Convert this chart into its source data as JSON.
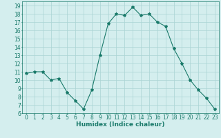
{
  "x": [
    0,
    1,
    2,
    3,
    4,
    5,
    6,
    7,
    8,
    9,
    10,
    11,
    12,
    13,
    14,
    15,
    16,
    17,
    18,
    19,
    20,
    21,
    22,
    23
  ],
  "y": [
    10.8,
    11.0,
    11.0,
    10.0,
    10.2,
    8.5,
    7.5,
    6.5,
    8.8,
    13.0,
    16.8,
    18.0,
    17.8,
    18.8,
    17.8,
    18.0,
    17.0,
    16.5,
    13.8,
    12.0,
    10.0,
    8.8,
    7.8,
    6.5
  ],
  "line_color": "#1a7a6a",
  "marker": "*",
  "marker_size": 3,
  "bg_color": "#d4eeee",
  "grid_color": "#aad4d4",
  "xlabel": "Humidex (Indice chaleur)",
  "xlim": [
    -0.5,
    23.5
  ],
  "ylim": [
    6,
    19.5
  ],
  "yticks": [
    6,
    7,
    8,
    9,
    10,
    11,
    12,
    13,
    14,
    15,
    16,
    17,
    18,
    19
  ],
  "xticks": [
    0,
    1,
    2,
    3,
    4,
    5,
    6,
    7,
    8,
    9,
    10,
    11,
    12,
    13,
    14,
    15,
    16,
    17,
    18,
    19,
    20,
    21,
    22,
    23
  ],
  "tick_fontsize": 5.5,
  "xlabel_fontsize": 6.5,
  "xlabel_fontweight": "bold"
}
